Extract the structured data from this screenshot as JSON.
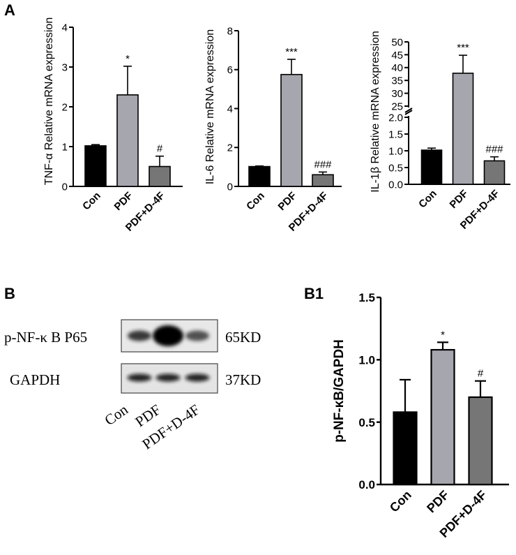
{
  "panels": {
    "a": "A",
    "b": "B",
    "b1": "B1"
  },
  "colors": {
    "con": "#000000",
    "pdf": "#a6a6ae",
    "pdf_d4f": "#767676",
    "axis": "#000000"
  },
  "chart_data": [
    {
      "id": "tnf",
      "type": "bar",
      "categories": [
        "Con",
        "PDF",
        "PDF+D-4F"
      ],
      "values": [
        1.02,
        2.3,
        0.5
      ],
      "errors": [
        0.03,
        0.72,
        0.26
      ],
      "annotations": [
        "",
        "*",
        "#"
      ],
      "ylabel": "TNF-α Relative mRNA expression",
      "ylim": [
        0,
        4
      ],
      "yticks": [
        "0",
        "1",
        "2",
        "3",
        "4"
      ],
      "xlabel": ""
    },
    {
      "id": "il6",
      "type": "bar",
      "categories": [
        "Con",
        "PDF",
        "PDF+D-4F"
      ],
      "values": [
        1.02,
        5.75,
        0.6
      ],
      "errors": [
        0.03,
        0.78,
        0.14
      ],
      "annotations": [
        "",
        "***",
        "###"
      ],
      "ylabel": "IL-6 Relative mRNA expression",
      "ylim": [
        0,
        8
      ],
      "yticks": [
        "0",
        "2",
        "4",
        "6",
        "8"
      ],
      "xlabel": ""
    },
    {
      "id": "il1b",
      "type": "bar",
      "categories": [
        "Con",
        "PDF",
        "PDF+D-4F"
      ],
      "values": [
        1.02,
        37.8,
        0.7
      ],
      "errors": [
        0.06,
        7.0,
        0.12
      ],
      "annotations": [
        "",
        "***",
        "###"
      ],
      "ylabel": "IL-1β Relative mRNA expression",
      "axis_break": true,
      "lower_ylim": [
        0,
        2
      ],
      "upper_ylim": [
        25,
        50
      ],
      "lower_yticks": [
        "0.0",
        "0.5",
        "1.0",
        "1.5",
        "2.0"
      ],
      "upper_yticks": [
        "25",
        "30",
        "35",
        "40",
        "45",
        "50"
      ],
      "xlabel": ""
    },
    {
      "id": "nfkb",
      "type": "bar",
      "categories": [
        "Con",
        "PDF",
        "PDF+D-4F"
      ],
      "values": [
        0.58,
        1.08,
        0.7
      ],
      "errors": [
        0.26,
        0.06,
        0.13
      ],
      "annotations": [
        "",
        "*",
        "#"
      ],
      "ylabel": "p-NF-κB/GAPDH",
      "ylim": [
        0,
        1.5
      ],
      "yticks": [
        "0.0",
        "0.5",
        "1.0",
        "1.5"
      ],
      "xlabel": ""
    }
  ],
  "western_blot": {
    "rows": [
      {
        "label": "p-NF-κ B P65",
        "size": "65KD",
        "intensities": [
          0.75,
          1.0,
          0.6
        ]
      },
      {
        "label": "GAPDH",
        "size": "37KD",
        "intensities": [
          0.85,
          0.85,
          0.85
        ]
      }
    ],
    "lanes": [
      "Con",
      "PDF",
      "PDF+D-4F"
    ]
  }
}
